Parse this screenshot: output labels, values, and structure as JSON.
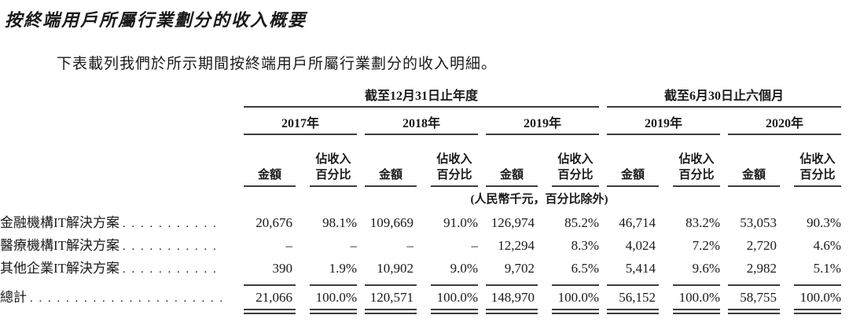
{
  "page": {
    "title": "按終端用戶所屬行業劃分的收入概要",
    "intro": "下表載列我們於所示期間按終端用戶所屬行業劃分的收入明細。"
  },
  "colors": {
    "text": "#1a1a1a",
    "rule": "#3d3d3d",
    "background": "#ffffff"
  },
  "table": {
    "group_headers": [
      {
        "label": "截至12月31日止年度"
      },
      {
        "label": "截至6月30日止六個月"
      }
    ],
    "years": [
      "2017年",
      "2018年",
      "2019年",
      "2019年",
      "2020年"
    ],
    "sub_headers": {
      "amount": "金額",
      "pct": "佔收入\n百分比"
    },
    "unit_note": "(人民幣千元，百分比除外)",
    "leader": ". . . . . . . . . . . . . . . . . . . . . . . . . . . . . . . . . . . . . . . . . . . . . . . .",
    "rows": [
      {
        "label": "金融機構IT解決方案",
        "values": [
          "20,676",
          "98.1%",
          "109,669",
          "91.0%",
          "126,974",
          "85.2%",
          "46,714",
          "83.2%",
          "53,053",
          "90.3%"
        ]
      },
      {
        "label": "醫療機構IT解決方案",
        "values": [
          "–",
          "–",
          "–",
          "–",
          "12,294",
          "8.3%",
          "4,024",
          "7.2%",
          "2,720",
          "4.6%"
        ]
      },
      {
        "label": "其他企業IT解決方案",
        "values": [
          "390",
          "1.9%",
          "10,902",
          "9.0%",
          "9,702",
          "6.5%",
          "5,414",
          "9.6%",
          "2,982",
          "5.1%"
        ]
      }
    ],
    "total_row": {
      "label": "總計",
      "values": [
        "21,066",
        "100.0%",
        "120,571",
        "100.0%",
        "148,970",
        "100.0%",
        "56,152",
        "100.0%",
        "58,755",
        "100.0%"
      ]
    }
  }
}
